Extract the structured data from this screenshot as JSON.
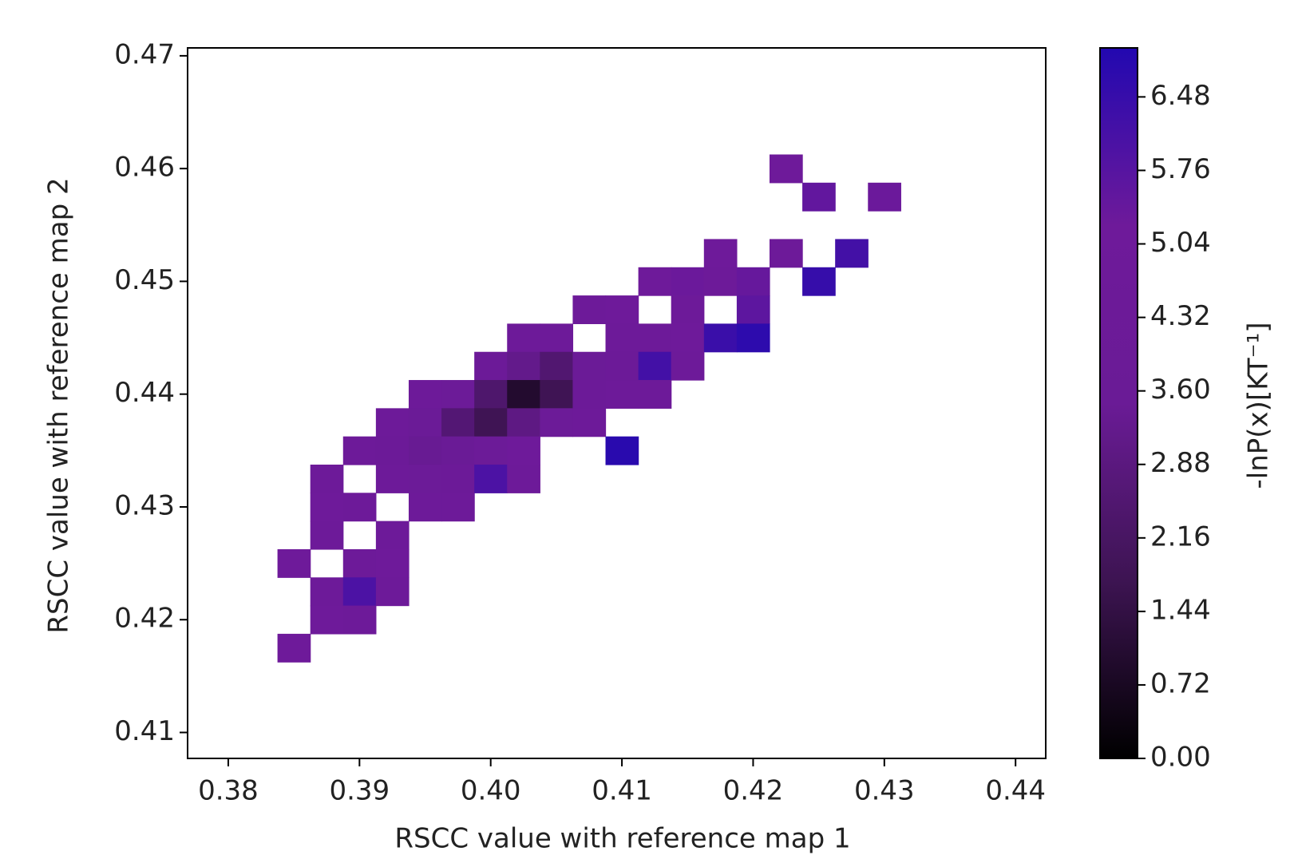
{
  "chart_data": {
    "type": "heatmap",
    "xlabel": "RSCC value with reference map 1",
    "ylabel": "RSCC value with reference map 2",
    "colorbar_label": "-lnP(x)[KT⁻¹]",
    "x": [
      0.385,
      0.3875,
      0.39,
      0.3925,
      0.395,
      0.3975,
      0.4,
      0.4025,
      0.405,
      0.4075,
      0.41,
      0.4125,
      0.415,
      0.4175,
      0.42,
      0.4225,
      0.425,
      0.4275,
      0.43
    ],
    "y": [
      0.46,
      0.4575,
      0.455,
      0.4525,
      0.45,
      0.4475,
      0.445,
      0.4425,
      0.44,
      0.4375,
      0.435,
      0.4325,
      0.43,
      0.4275,
      0.425,
      0.4225,
      0.42,
      0.4175
    ],
    "values": [
      [
        null,
        null,
        null,
        null,
        null,
        null,
        null,
        null,
        null,
        null,
        null,
        null,
        null,
        null,
        null,
        5.2,
        null,
        null,
        null
      ],
      [
        null,
        null,
        null,
        null,
        null,
        null,
        null,
        null,
        null,
        null,
        null,
        null,
        null,
        null,
        null,
        null,
        5.5,
        null,
        5.3
      ],
      [
        null,
        null,
        null,
        null,
        null,
        null,
        null,
        null,
        null,
        null,
        null,
        null,
        null,
        null,
        null,
        null,
        null,
        null,
        null
      ],
      [
        null,
        null,
        null,
        null,
        null,
        null,
        null,
        null,
        null,
        null,
        null,
        null,
        null,
        5.2,
        null,
        5.0,
        null,
        6.2,
        null
      ],
      [
        null,
        null,
        null,
        null,
        null,
        null,
        null,
        null,
        null,
        null,
        null,
        5.1,
        5.3,
        5.0,
        5.4,
        null,
        6.5,
        null,
        null
      ],
      [
        null,
        null,
        null,
        null,
        null,
        null,
        null,
        null,
        null,
        5.0,
        5.2,
        null,
        5.0,
        null,
        5.6,
        null,
        null,
        null,
        null
      ],
      [
        null,
        null,
        null,
        null,
        null,
        null,
        null,
        4.8,
        4.9,
        null,
        4.6,
        5.0,
        5.2,
        6.4,
        6.7,
        null,
        null,
        null,
        null
      ],
      [
        null,
        null,
        null,
        null,
        null,
        null,
        4.5,
        3.2,
        2.5,
        4.0,
        4.5,
        6.2,
        5.0,
        null,
        null,
        null,
        null,
        null,
        null
      ],
      [
        null,
        null,
        null,
        null,
        4.9,
        4.2,
        2.4,
        1.0,
        1.8,
        4.4,
        5.0,
        4.8,
        null,
        null,
        null,
        null,
        null,
        null,
        null
      ],
      [
        null,
        null,
        null,
        4.8,
        3.9,
        2.6,
        1.8,
        3.0,
        4.3,
        5.0,
        null,
        null,
        null,
        null,
        null,
        null,
        null,
        null,
        null
      ],
      [
        null,
        null,
        5.0,
        4.4,
        3.4,
        3.5,
        4.2,
        5.2,
        null,
        null,
        6.8,
        null,
        null,
        null,
        null,
        null,
        null,
        null,
        null
      ],
      [
        null,
        5.0,
        null,
        4.6,
        4.3,
        4.5,
        6.0,
        4.8,
        null,
        null,
        null,
        null,
        null,
        null,
        null,
        null,
        null,
        null,
        null
      ],
      [
        null,
        5.1,
        4.8,
        null,
        4.6,
        4.7,
        null,
        null,
        null,
        null,
        null,
        null,
        null,
        null,
        null,
        null,
        null,
        null,
        null
      ],
      [
        null,
        4.9,
        null,
        5.0,
        null,
        null,
        null,
        null,
        null,
        null,
        null,
        null,
        null,
        null,
        null,
        null,
        null,
        null,
        null
      ],
      [
        5.2,
        null,
        4.9,
        5.1,
        null,
        null,
        null,
        null,
        null,
        null,
        null,
        null,
        null,
        null,
        null,
        null,
        null,
        null,
        null
      ],
      [
        null,
        5.0,
        6.0,
        4.9,
        null,
        null,
        null,
        null,
        null,
        null,
        null,
        null,
        null,
        null,
        null,
        null,
        null,
        null,
        null
      ],
      [
        null,
        5.1,
        4.8,
        null,
        null,
        null,
        null,
        null,
        null,
        null,
        null,
        null,
        null,
        null,
        null,
        null,
        null,
        null,
        null
      ],
      [
        5.2,
        null,
        null,
        null,
        null,
        null,
        null,
        null,
        null,
        null,
        null,
        null,
        null,
        null,
        null,
        null,
        null,
        null,
        null
      ]
    ],
    "cell_size": 0.0025,
    "xlim": [
      0.3769,
      0.4423
    ],
    "ylim": [
      0.4077,
      0.4707
    ],
    "xticks": [
      0.38,
      0.39,
      {
        "value": 0.4,
        "label": "0.40"
      },
      0.41,
      0.42,
      0.43,
      0.44
    ],
    "yticks": [
      0.41,
      0.42,
      0.43,
      0.44,
      0.45,
      0.46,
      0.47
    ],
    "zlim": [
      0,
      6.96
    ],
    "zticks": [
      {
        "value": 0,
        "label": "0.00"
      },
      {
        "value": 0.72,
        "label": "0.72"
      },
      {
        "value": 1.44,
        "label": "1.44"
      },
      {
        "value": 2.16,
        "label": "2.16"
      },
      {
        "value": 2.88,
        "label": "2.88"
      },
      {
        "value": 3.6,
        "label": "3.60"
      },
      {
        "value": 4.32,
        "label": "4.32"
      },
      {
        "value": 5.04,
        "label": "5.04"
      },
      {
        "value": 5.76,
        "label": "5.76"
      },
      {
        "value": 6.48,
        "label": "6.48"
      }
    ],
    "colormap": [
      "#000000",
      "#3d1452",
      "#6a1b96",
      "#6e1a9a",
      "#2208b0"
    ]
  }
}
